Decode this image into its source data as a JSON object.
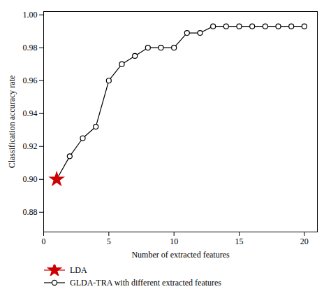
{
  "chart_data": {
    "type": "line",
    "xlabel": "Number of extracted features",
    "ylabel": "Classification accuracy rate",
    "series": [
      {
        "name": "LDA",
        "type": "scatter",
        "color": "#cc0000",
        "marker": "star",
        "x": [
          1
        ],
        "values": [
          0.9
        ]
      },
      {
        "name": "GLDA-TRA with different extracted features",
        "type": "line",
        "color": "#000000",
        "marker": "circle",
        "x": [
          1,
          2,
          3,
          4,
          5,
          6,
          7,
          8,
          9,
          10,
          11,
          12,
          13,
          14,
          15,
          16,
          17,
          18,
          19,
          20
        ],
        "values": [
          0.9,
          0.914,
          0.925,
          0.932,
          0.96,
          0.97,
          0.975,
          0.98,
          0.98,
          0.98,
          0.989,
          0.989,
          0.993,
          0.993,
          0.993,
          0.993,
          0.993,
          0.993,
          0.993,
          0.993
        ]
      }
    ],
    "xlim": [
      0,
      21
    ],
    "ylim": [
      0.868,
      1.002
    ],
    "xticks": [
      0,
      5,
      10,
      15,
      20
    ],
    "yticks": [
      0.88,
      {
        "value": 0.9,
        "label": "0.90"
      },
      0.92,
      0.94,
      0.96,
      0.98,
      {
        "value": 1,
        "label": "1.00"
      }
    ],
    "grid": false,
    "legend": "below"
  }
}
